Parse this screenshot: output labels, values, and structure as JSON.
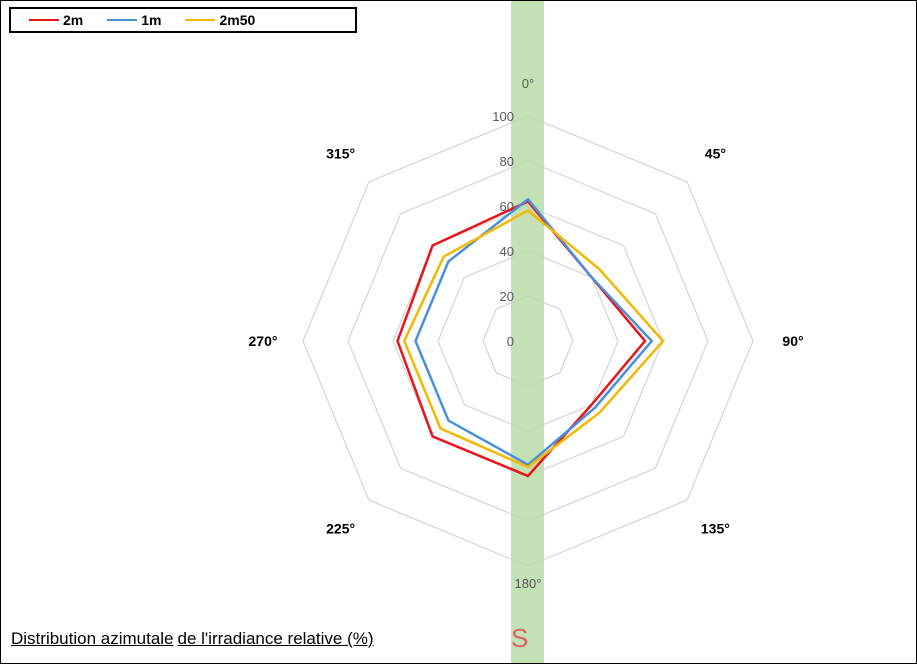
{
  "chart_data": {
    "type": "radar",
    "axes": [
      "0°",
      "45°",
      "90°",
      "135°",
      "180°",
      "225°",
      "270°",
      "315°"
    ],
    "radial_ticks": [
      "0",
      "20",
      "40",
      "60",
      "80",
      "100"
    ],
    "rlim": [
      0,
      100
    ],
    "legend_position": "top-left",
    "series": [
      {
        "name": "2m",
        "color": "#e8141c",
        "values": [
          62,
          40,
          52,
          40,
          60,
          60,
          58,
          60
        ]
      },
      {
        "name": "1m",
        "color": "#4a90d9",
        "values": [
          63,
          40,
          55,
          42,
          55,
          50,
          50,
          50
        ]
      },
      {
        "name": "2m50",
        "color": "#f5b800",
        "values": [
          58,
          45,
          60,
          45,
          56,
          55,
          55,
          53
        ]
      }
    ]
  },
  "caption": {
    "part1": "Distribution azimutale",
    "part2": "de l'irradiance relative (%)"
  },
  "south_marker": "S",
  "colors": {
    "band": "#b8dca8",
    "grid": "#d4d4d4",
    "tick_label": "#595959",
    "south_marker": "#e06060"
  }
}
